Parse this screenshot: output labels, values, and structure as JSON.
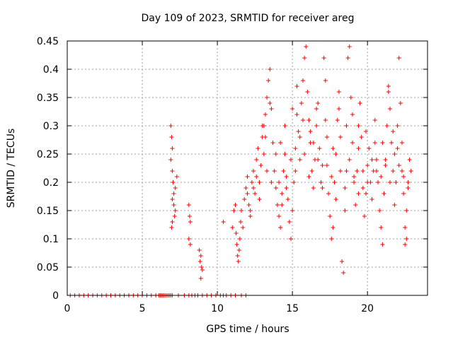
{
  "chart_data": {
    "type": "scatter",
    "title": "Day 109 of 2023, SRMTID for receiver areg",
    "xlabel": "GPS time / hours",
    "ylabel": "SRMTID / TECUs",
    "xlim": [
      0,
      24
    ],
    "ylim": [
      0,
      0.45
    ],
    "xticks": [
      0,
      5,
      10,
      15,
      20
    ],
    "xtick_labels": [
      "0",
      "5",
      "10",
      "15",
      "20"
    ],
    "yticks": [
      0,
      0.05,
      0.1,
      0.15,
      0.2,
      0.25,
      0.3,
      0.35,
      0.4,
      0.45
    ],
    "ytick_labels": [
      "0",
      "0.05",
      "0.1",
      "0.15",
      "0.2",
      "0.25",
      "0.3",
      "0.35",
      "0.4",
      "0.45"
    ],
    "grid": true,
    "marker": "+",
    "colors": {
      "series": "#ff0000",
      "grid": "#a0a0a0",
      "axis": "#000000"
    },
    "series": [
      {
        "name": "SRMTID",
        "points": [
          [
            0.2,
            0
          ],
          [
            0.5,
            0
          ],
          [
            0.8,
            0
          ],
          [
            1.1,
            0
          ],
          [
            1.4,
            0
          ],
          [
            1.7,
            0
          ],
          [
            2.0,
            0
          ],
          [
            2.3,
            0
          ],
          [
            2.6,
            0
          ],
          [
            2.9,
            0
          ],
          [
            3.2,
            0
          ],
          [
            3.5,
            0
          ],
          [
            3.8,
            0
          ],
          [
            4.1,
            0
          ],
          [
            4.4,
            0
          ],
          [
            4.7,
            0
          ],
          [
            5.0,
            0
          ],
          [
            5.3,
            0
          ],
          [
            5.6,
            0
          ],
          [
            5.9,
            0
          ],
          [
            6.1,
            0
          ],
          [
            6.2,
            0
          ],
          [
            6.3,
            0
          ],
          [
            6.4,
            0
          ],
          [
            6.5,
            0
          ],
          [
            6.6,
            0
          ],
          [
            6.7,
            0
          ],
          [
            6.8,
            0
          ],
          [
            6.9,
            0
          ],
          [
            7.0,
            0
          ],
          [
            7.4,
            0
          ],
          [
            7.8,
            0
          ],
          [
            8.1,
            0
          ],
          [
            8.3,
            0
          ],
          [
            8.5,
            0
          ],
          [
            8.7,
            0
          ],
          [
            9.0,
            0
          ],
          [
            9.3,
            0
          ],
          [
            9.6,
            0
          ],
          [
            9.9,
            0
          ],
          [
            10.2,
            0
          ],
          [
            10.4,
            0
          ],
          [
            10.6,
            0
          ],
          [
            10.9,
            0
          ],
          [
            11.2,
            0
          ],
          [
            11.6,
            0
          ],
          [
            11.9,
            0
          ],
          [
            6.9,
            0.3
          ],
          [
            6.95,
            0.28
          ],
          [
            7.0,
            0.26
          ],
          [
            6.9,
            0.24
          ],
          [
            7.0,
            0.22
          ],
          [
            7.05,
            0.2
          ],
          [
            7.1,
            0.18
          ],
          [
            7.0,
            0.17
          ],
          [
            7.1,
            0.16
          ],
          [
            7.2,
            0.15
          ],
          [
            7.15,
            0.14
          ],
          [
            7.0,
            0.13
          ],
          [
            6.95,
            0.12
          ],
          [
            7.2,
            0.19
          ],
          [
            7.3,
            0.21
          ],
          [
            8.1,
            0.16
          ],
          [
            8.15,
            0.14
          ],
          [
            8.2,
            0.13
          ],
          [
            8.1,
            0.1
          ],
          [
            8.2,
            0.09
          ],
          [
            8.8,
            0.08
          ],
          [
            8.9,
            0.07
          ],
          [
            8.85,
            0.06
          ],
          [
            8.95,
            0.05
          ],
          [
            9.0,
            0.045
          ],
          [
            8.9,
            0.03
          ],
          [
            10.4,
            0.13
          ],
          [
            11.0,
            0.12
          ],
          [
            11.1,
            0.15
          ],
          [
            11.2,
            0.16
          ],
          [
            11.25,
            0.11
          ],
          [
            11.3,
            0.09
          ],
          [
            11.35,
            0.07
          ],
          [
            11.4,
            0.06
          ],
          [
            11.45,
            0.08
          ],
          [
            11.5,
            0.1
          ],
          [
            11.55,
            0.13
          ],
          [
            11.6,
            0.15
          ],
          [
            11.7,
            0.12
          ],
          [
            11.8,
            0.17
          ],
          [
            11.9,
            0.19
          ],
          [
            12.0,
            0.21
          ],
          [
            12.1,
            0.16
          ],
          [
            12.2,
            0.14
          ],
          [
            12.3,
            0.2
          ],
          [
            12.4,
            0.22
          ],
          [
            12.5,
            0.18
          ],
          [
            12.6,
            0.24
          ],
          [
            12.7,
            0.26
          ],
          [
            12.8,
            0.2
          ],
          [
            12.9,
            0.23
          ],
          [
            13.0,
            0.28
          ],
          [
            13.1,
            0.3
          ],
          [
            13.2,
            0.32
          ],
          [
            13.3,
            0.35
          ],
          [
            13.4,
            0.38
          ],
          [
            13.5,
            0.4
          ],
          [
            13.6,
            0.33
          ],
          [
            13.7,
            0.27
          ],
          [
            13.8,
            0.22
          ],
          [
            13.9,
            0.19
          ],
          [
            14.0,
            0.16
          ],
          [
            14.1,
            0.14
          ],
          [
            14.2,
            0.12
          ],
          [
            14.3,
            0.18
          ],
          [
            14.4,
            0.22
          ],
          [
            14.5,
            0.25
          ],
          [
            14.6,
            0.21
          ],
          [
            14.7,
            0.17
          ],
          [
            14.8,
            0.13
          ],
          [
            14.9,
            0.1
          ],
          [
            15.0,
            0.15
          ],
          [
            15.1,
            0.2
          ],
          [
            15.2,
            0.26
          ],
          [
            15.3,
            0.32
          ],
          [
            15.4,
            0.29
          ],
          [
            15.5,
            0.24
          ],
          [
            15.6,
            0.34
          ],
          [
            15.7,
            0.38
          ],
          [
            15.8,
            0.42
          ],
          [
            15.9,
            0.44
          ],
          [
            16.0,
            0.36
          ],
          [
            16.1,
            0.31
          ],
          [
            16.2,
            0.27
          ],
          [
            16.3,
            0.22
          ],
          [
            16.4,
            0.19
          ],
          [
            16.5,
            0.24
          ],
          [
            16.6,
            0.3
          ],
          [
            16.7,
            0.34
          ],
          [
            16.8,
            0.26
          ],
          [
            16.9,
            0.2
          ],
          [
            17.0,
            0.23
          ],
          [
            17.1,
            0.42
          ],
          [
            17.2,
            0.38
          ],
          [
            17.3,
            0.28
          ],
          [
            17.4,
            0.18
          ],
          [
            17.5,
            0.14
          ],
          [
            17.6,
            0.1
          ],
          [
            17.7,
            0.12
          ],
          [
            17.8,
            0.2
          ],
          [
            17.9,
            0.25
          ],
          [
            18.0,
            0.31
          ],
          [
            18.1,
            0.36
          ],
          [
            18.2,
            0.28
          ],
          [
            18.3,
            0.06
          ],
          [
            18.4,
            0.04
          ],
          [
            18.5,
            0.15
          ],
          [
            18.6,
            0.22
          ],
          [
            18.7,
            0.42
          ],
          [
            18.8,
            0.44
          ],
          [
            18.9,
            0.35
          ],
          [
            19.0,
            0.27
          ],
          [
            19.1,
            0.2
          ],
          [
            19.2,
            0.16
          ],
          [
            19.3,
            0.22
          ],
          [
            19.4,
            0.3
          ],
          [
            19.5,
            0.34
          ],
          [
            19.6,
            0.28
          ],
          [
            19.7,
            0.19
          ],
          [
            19.8,
            0.14
          ],
          [
            19.9,
            0.18
          ],
          [
            20.0,
            0.23
          ],
          [
            20.1,
            0.26
          ],
          [
            20.2,
            0.2
          ],
          [
            20.3,
            0.17
          ],
          [
            20.4,
            0.22
          ],
          [
            20.5,
            0.27
          ],
          [
            20.6,
            0.24
          ],
          [
            20.7,
            0.2
          ],
          [
            20.8,
            0.15
          ],
          [
            20.9,
            0.12
          ],
          [
            21.0,
            0.09
          ],
          [
            21.1,
            0.18
          ],
          [
            21.2,
            0.24
          ],
          [
            21.3,
            0.3
          ],
          [
            21.4,
            0.36
          ],
          [
            21.5,
            0.33
          ],
          [
            21.6,
            0.27
          ],
          [
            21.7,
            0.22
          ],
          [
            21.8,
            0.16
          ],
          [
            21.9,
            0.2
          ],
          [
            22.0,
            0.26
          ],
          [
            22.1,
            0.42
          ],
          [
            22.2,
            0.34
          ],
          [
            22.3,
            0.22
          ],
          [
            22.4,
            0.18
          ],
          [
            22.5,
            0.12
          ],
          [
            22.6,
            0.15
          ],
          [
            22.7,
            0.2
          ],
          [
            22.8,
            0.24
          ],
          [
            22.9,
            0.22
          ],
          [
            22.5,
            0.09
          ],
          [
            22.6,
            0.1
          ],
          [
            12.0,
            0.18
          ],
          [
            12.2,
            0.15
          ],
          [
            12.4,
            0.19
          ],
          [
            12.6,
            0.21
          ],
          [
            12.8,
            0.17
          ],
          [
            13.1,
            0.25
          ],
          [
            13.3,
            0.22
          ],
          [
            13.6,
            0.2
          ],
          [
            13.9,
            0.25
          ],
          [
            14.1,
            0.2
          ],
          [
            14.3,
            0.16
          ],
          [
            14.6,
            0.19
          ],
          [
            14.9,
            0.24
          ],
          [
            15.2,
            0.22
          ],
          [
            15.5,
            0.28
          ],
          [
            15.8,
            0.25
          ],
          [
            16.1,
            0.21
          ],
          [
            16.4,
            0.27
          ],
          [
            16.7,
            0.24
          ],
          [
            17.0,
            0.19
          ],
          [
            17.3,
            0.23
          ],
          [
            17.6,
            0.21
          ],
          [
            17.9,
            0.17
          ],
          [
            18.2,
            0.22
          ],
          [
            18.5,
            0.19
          ],
          [
            18.8,
            0.24
          ],
          [
            19.1,
            0.21
          ],
          [
            19.4,
            0.18
          ],
          [
            19.7,
            0.22
          ],
          [
            20.0,
            0.2
          ],
          [
            20.3,
            0.24
          ],
          [
            20.6,
            0.22
          ],
          [
            20.9,
            0.21
          ],
          [
            21.2,
            0.23
          ],
          [
            21.5,
            0.2
          ],
          [
            21.8,
            0.25
          ],
          [
            22.1,
            0.23
          ],
          [
            22.4,
            0.21
          ],
          [
            22.7,
            0.19
          ],
          [
            13.0,
            0.3
          ],
          [
            13.2,
            0.28
          ],
          [
            13.5,
            0.34
          ],
          [
            14.2,
            0.27
          ],
          [
            14.5,
            0.3
          ],
          [
            15.0,
            0.33
          ],
          [
            15.3,
            0.37
          ],
          [
            15.7,
            0.31
          ],
          [
            16.2,
            0.29
          ],
          [
            16.6,
            0.33
          ],
          [
            17.2,
            0.31
          ],
          [
            17.7,
            0.26
          ],
          [
            18.1,
            0.33
          ],
          [
            18.6,
            0.3
          ],
          [
            19.0,
            0.32
          ],
          [
            19.4,
            0.26
          ],
          [
            19.9,
            0.29
          ],
          [
            20.5,
            0.31
          ],
          [
            21.0,
            0.27
          ],
          [
            21.4,
            0.37
          ],
          [
            21.7,
            0.29
          ],
          [
            22.0,
            0.3
          ],
          [
            22.3,
            0.27
          ]
        ]
      }
    ]
  }
}
